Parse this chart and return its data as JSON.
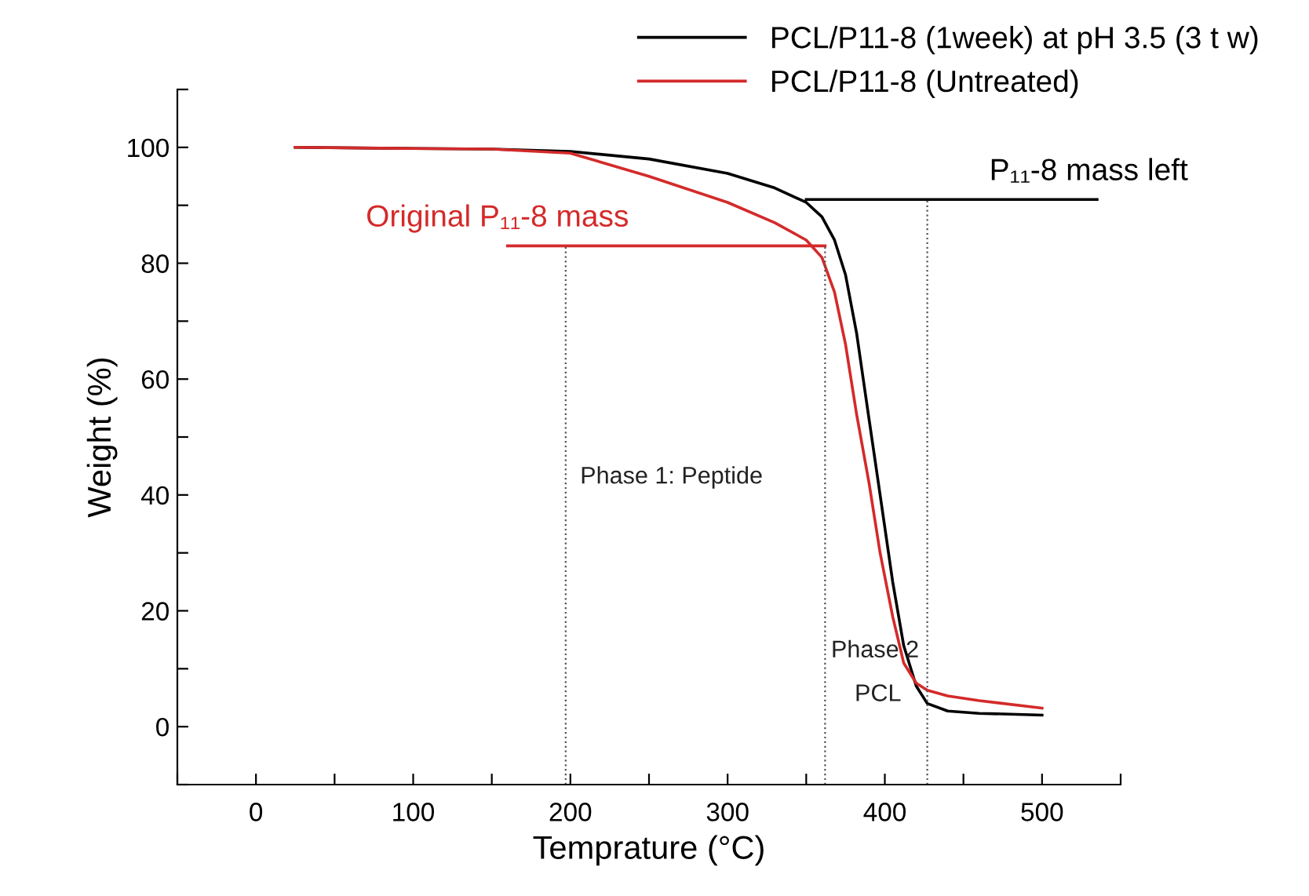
{
  "chart_data": {
    "type": "line",
    "xlabel": "Temprature (°C)",
    "ylabel": "Weight (%)",
    "xlim": [
      -50,
      550
    ],
    "ylim": [
      -10,
      110
    ],
    "xticks": [
      {
        "value": -50,
        "label": null
      },
      0,
      {
        "value": 50,
        "label": null
      },
      100,
      {
        "value": 150,
        "label": null
      },
      200,
      {
        "value": 250,
        "label": null
      },
      300,
      {
        "value": 350,
        "label": null
      },
      400,
      {
        "value": 450,
        "label": null
      },
      500,
      {
        "value": 550,
        "label": null
      }
    ],
    "yticks": [
      {
        "value": -10,
        "label": null
      },
      0,
      {
        "value": 10,
        "label": null
      },
      20,
      {
        "value": 30,
        "label": null
      },
      40,
      {
        "value": 50,
        "label": null
      },
      60,
      {
        "value": 70,
        "label": null
      },
      80,
      {
        "value": 90,
        "label": null
      },
      100,
      {
        "value": 110,
        "label": null
      }
    ],
    "grid": false,
    "legend": "top right",
    "marker": "none",
    "line_style": "solid",
    "series": [
      {
        "name": "PCL/P11-8 (1week) at pH 3.5 (3 t w)",
        "color": "#000000",
        "x": [
          25,
          100,
          150,
          200,
          250,
          300,
          330,
          350,
          360,
          368,
          375,
          382,
          390,
          397,
          405,
          412,
          420,
          427,
          440,
          460,
          500
        ],
        "values": [
          100,
          99.8,
          99.7,
          99.3,
          98,
          95.5,
          93,
          90.5,
          88,
          84,
          78,
          68,
          53,
          40,
          25,
          14,
          7,
          4,
          2.7,
          2.3,
          2
        ]
      },
      {
        "name": "PCL/P11-8 (Untreated)",
        "color": "#d42a2a",
        "x": [
          25,
          100,
          150,
          200,
          250,
          300,
          330,
          350,
          360,
          368,
          375,
          382,
          390,
          397,
          405,
          412,
          420,
          427,
          440,
          460,
          500
        ],
        "values": [
          100,
          99.8,
          99.7,
          99,
          95,
          90.5,
          87,
          84,
          81,
          75,
          66,
          54,
          42,
          30,
          19,
          11,
          7.5,
          6.3,
          5.3,
          4.5,
          3.2
        ]
      },
      {
        "name": "Original P₁₁-8 mass",
        "color": "#d42a2a",
        "x": [
          160,
          362
        ],
        "values": [
          83,
          83
        ]
      },
      {
        "name": "P₁₁-8 mass left",
        "color": "#000000",
        "x": [
          350,
          535
        ],
        "values": [
          91,
          91
        ]
      },
      {
        "color": "#555555",
        "line_style": "dotted",
        "x": [
          197,
          197
        ],
        "values": [
          -10,
          83
        ]
      },
      {
        "color": "#555555",
        "line_style": "dotted",
        "x": [
          362,
          362
        ],
        "values": [
          -10,
          83
        ]
      },
      {
        "color": "#555555",
        "line_style": "dotted",
        "x": [
          427,
          427
        ],
        "values": [
          -10,
          91
        ]
      }
    ],
    "annotations": [
      "Phase 1: Peptide",
      "Phase 2",
      "PCL"
    ]
  }
}
